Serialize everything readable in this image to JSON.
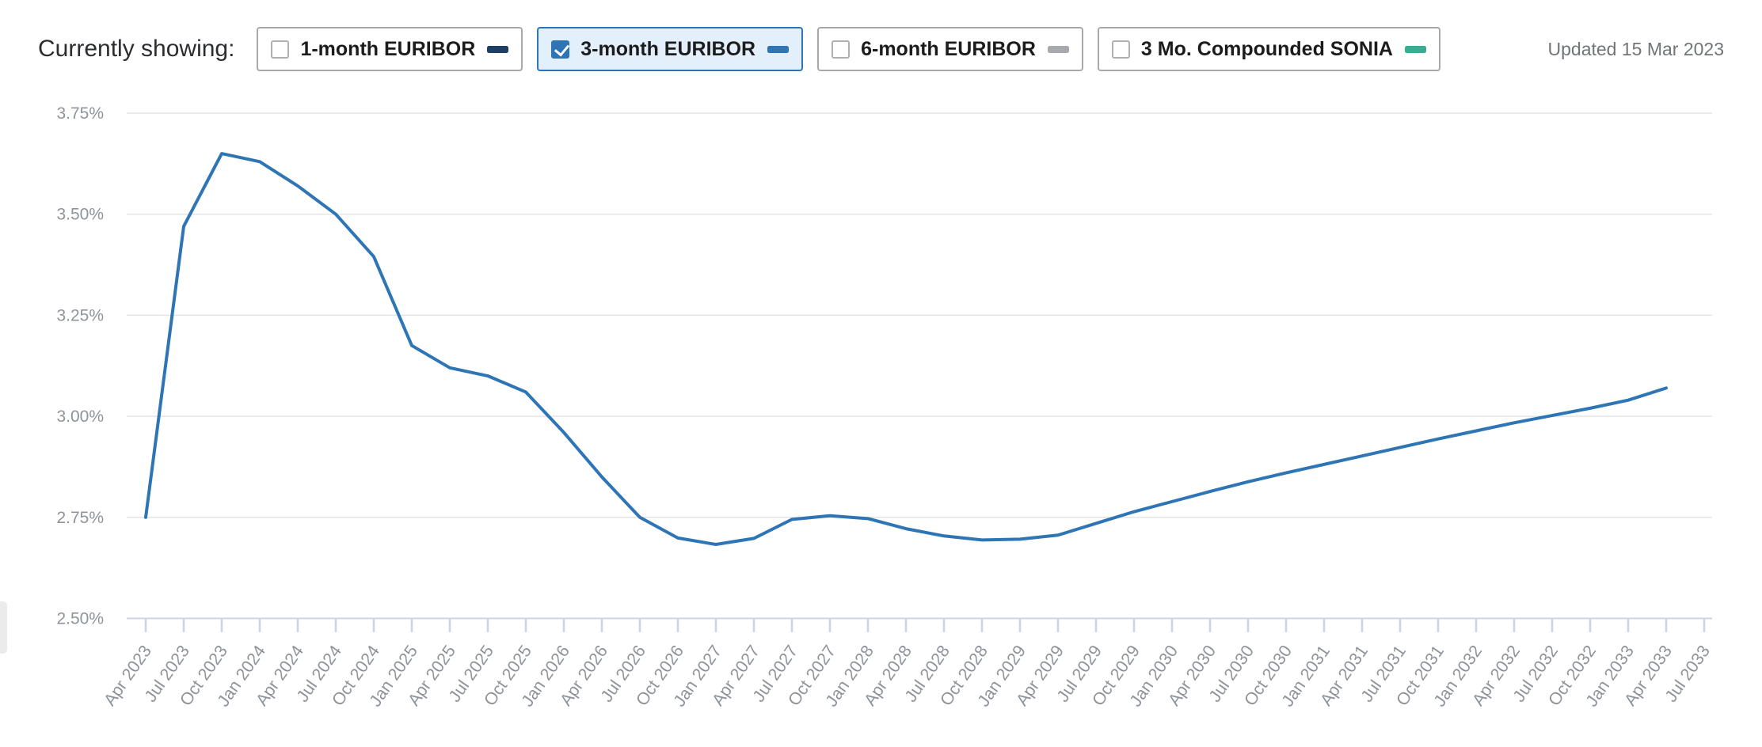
{
  "header": {
    "label": "Currently showing:",
    "updated": "Updated 15 Mar 2023",
    "series_toggles": [
      {
        "label": "1-month EURIBOR",
        "checked": false,
        "color": "#1f3e63"
      },
      {
        "label": "3-month EURIBOR",
        "checked": true,
        "color": "#2e75b6"
      },
      {
        "label": "6-month EURIBOR",
        "checked": false,
        "color": "#a7a9ac"
      },
      {
        "label": "3 Mo. Compounded SONIA",
        "checked": false,
        "color": "#3cab92"
      }
    ]
  },
  "chart_data": {
    "type": "line",
    "title": "",
    "xlabel": "",
    "ylabel": "",
    "x": [
      "Apr 2023",
      "Jul 2023",
      "Oct 2023",
      "Jan 2024",
      "Apr 2024",
      "Jul 2024",
      "Oct 2024",
      "Jan 2025",
      "Apr 2025",
      "Jul 2025",
      "Oct 2025",
      "Jan 2026",
      "Apr 2026",
      "Jul 2026",
      "Oct 2026",
      "Jan 2027",
      "Apr 2027",
      "Jul 2027",
      "Oct 2027",
      "Jan 2028",
      "Apr 2028",
      "Jul 2028",
      "Oct 2028",
      "Jan 2029",
      "Apr 2029",
      "Jul 2029",
      "Oct 2029",
      "Jan 2030",
      "Apr 2030",
      "Jul 2030",
      "Oct 2030",
      "Jan 2031",
      "Apr 2031",
      "Jul 2031",
      "Oct 2031",
      "Jan 2032",
      "Apr 2032",
      "Jul 2032",
      "Oct 2032",
      "Jan 2033",
      "Apr 2033",
      "Jul 2033"
    ],
    "yticks_labels": [
      "3.75%",
      "3.50%",
      "3.25%",
      "3.00%",
      "2.75%",
      "2.50%"
    ],
    "yticks": [
      3.75,
      3.5,
      3.25,
      3.0,
      2.75,
      2.5
    ],
    "ylim": [
      2.5,
      3.75
    ],
    "grid": "horizontal",
    "legend_position": "top",
    "series": [
      {
        "name": "3-month EURIBOR",
        "color": "#2e75b6",
        "values": [
          2.75,
          3.47,
          3.65,
          3.63,
          3.57,
          3.5,
          3.395,
          3.175,
          3.12,
          3.1,
          3.06,
          2.96,
          2.85,
          2.75,
          2.699,
          2.683,
          2.698,
          2.745,
          2.754,
          2.747,
          2.722,
          2.704,
          2.694,
          2.696,
          2.706,
          2.735,
          2.764,
          2.789,
          2.814,
          2.838,
          2.86,
          2.881,
          2.902,
          2.923,
          2.944,
          2.964,
          2.984,
          3.002,
          3.02,
          3.04,
          3.07,
          null
        ]
      }
    ]
  },
  "axis_colors": {
    "grid": "#e4e4e4",
    "axis": "#ccd4e6",
    "tick": "#c9d2e6",
    "label": "#8f939c"
  }
}
